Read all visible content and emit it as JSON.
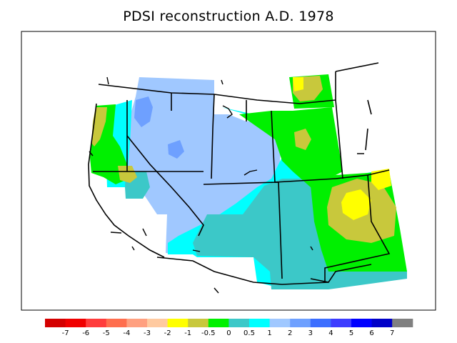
{
  "title": "PDSI reconstruction A.D. 1978",
  "legend": {
    "colors": [
      "#d40000",
      "#f00000",
      "#ff3c3c",
      "#ff6e4e",
      "#ffa080",
      "#ffcaa0",
      "#ffff00",
      "#c8c83c",
      "#00f000",
      "#3cc8c8",
      "#00ffff",
      "#a0c8ff",
      "#6ea0ff",
      "#3c6eff",
      "#3c3cff",
      "#0000ff",
      "#0000c8",
      "#808080"
    ],
    "labels": [
      "-7",
      "-6",
      "-5",
      "-4",
      "-3",
      "-2",
      "-1",
      "-0.5",
      "0",
      "0.5",
      "1",
      "2",
      "3",
      "4",
      "5",
      "6",
      "7"
    ]
  },
  "palette": {
    "light_blue": "#a0c8ff",
    "mid_blue": "#6ea0ff",
    "cyan": "#00ffff",
    "teal": "#3cc8c8",
    "green": "#00f000",
    "olive": "#c8c83c",
    "yellow": "#ffff00"
  }
}
